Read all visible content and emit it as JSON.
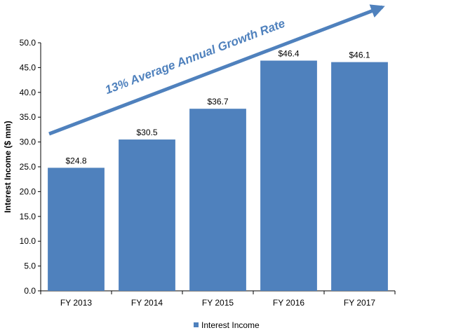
{
  "chart_data": {
    "type": "bar",
    "title": "",
    "categories": [
      "FY 2013",
      "FY 2014",
      "FY 2015",
      "FY 2016",
      "FY 2017"
    ],
    "series": [
      {
        "name": "Interest Income",
        "values": [
          24.8,
          30.5,
          36.7,
          46.4,
          46.1
        ],
        "data_labels": [
          "$24.8",
          "$30.5",
          "$36.7",
          "$46.4",
          "$46.1"
        ],
        "color": "#4f81bd"
      }
    ],
    "xlabel": "",
    "ylabel": "Interest Income ($ mm)",
    "ylim": [
      0,
      50
    ],
    "yticks": [
      "0.0",
      "5.0",
      "10.0",
      "15.0",
      "20.0",
      "25.0",
      "30.0",
      "35.0",
      "40.0",
      "45.0",
      "50.0"
    ],
    "grid": false,
    "legend": "bottom",
    "annotation": {
      "text": "13% Average Annual Growth Rate",
      "color": "#4f81bd"
    }
  }
}
